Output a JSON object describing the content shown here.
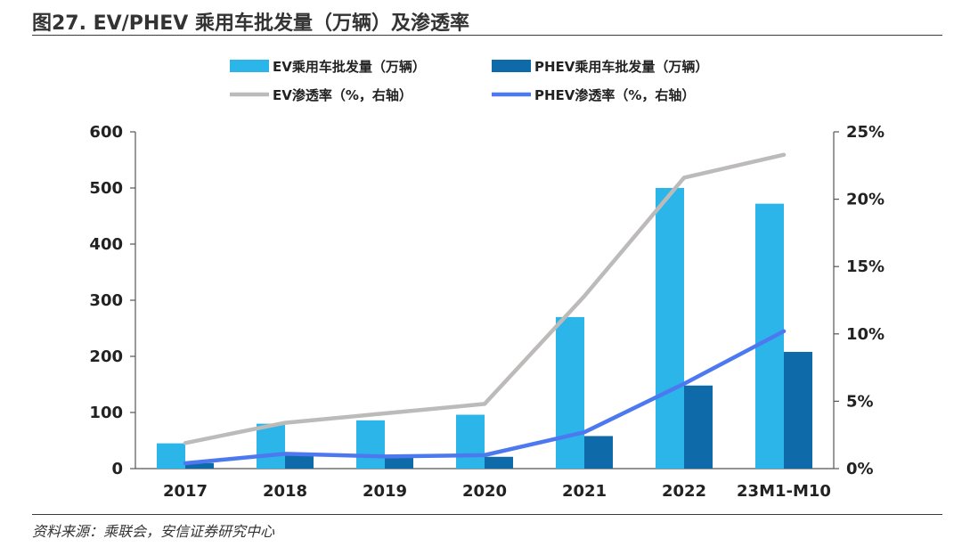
{
  "header": {
    "title": "图27. EV/PHEV 乘用车批发量（万辆）及渗透率"
  },
  "footer": {
    "source": "资料来源：乘联会，安信证券研究中心"
  },
  "colors": {
    "ev_bar": "#2bb5e8",
    "phev_bar": "#0e6aa8",
    "ev_line": "#bdbaba",
    "phev_line": "#4d79f0",
    "axis": "#555555"
  },
  "chart_data": {
    "type": "bar",
    "title": "EV/PHEV 乘用车批发量（万辆）及渗透率",
    "categories": [
      "2017",
      "2018",
      "2019",
      "2020",
      "2021",
      "2022",
      "23M1-M10"
    ],
    "series": [
      {
        "name": "EV乘用车批发量（万辆）",
        "kind": "bar",
        "axis": "left",
        "values": [
          45,
          80,
          86,
          96,
          270,
          500,
          472
        ]
      },
      {
        "name": "PHEV乘用车批发量（万辆）",
        "kind": "bar",
        "axis": "left",
        "values": [
          10,
          25,
          22,
          21,
          58,
          148,
          208
        ]
      },
      {
        "name": "EV渗透率（%，右轴）",
        "kind": "line",
        "axis": "right",
        "values": [
          1.9,
          3.4,
          4.1,
          4.8,
          12.8,
          21.6,
          23.3
        ]
      },
      {
        "name": "PHEV渗透率（%，右轴）",
        "kind": "line",
        "axis": "right",
        "values": [
          0.4,
          1.1,
          0.9,
          1.0,
          2.7,
          6.3,
          10.2
        ]
      }
    ],
    "left_axis": {
      "ylim": [
        0,
        600
      ],
      "ticks": [
        "0",
        "100",
        "200",
        "300",
        "400",
        "500",
        "600"
      ]
    },
    "right_axis": {
      "ylim": [
        0,
        25
      ],
      "ticks": [
        "0%",
        "5%",
        "10%",
        "15%",
        "20%",
        "25%"
      ]
    },
    "legend_position": "top"
  }
}
